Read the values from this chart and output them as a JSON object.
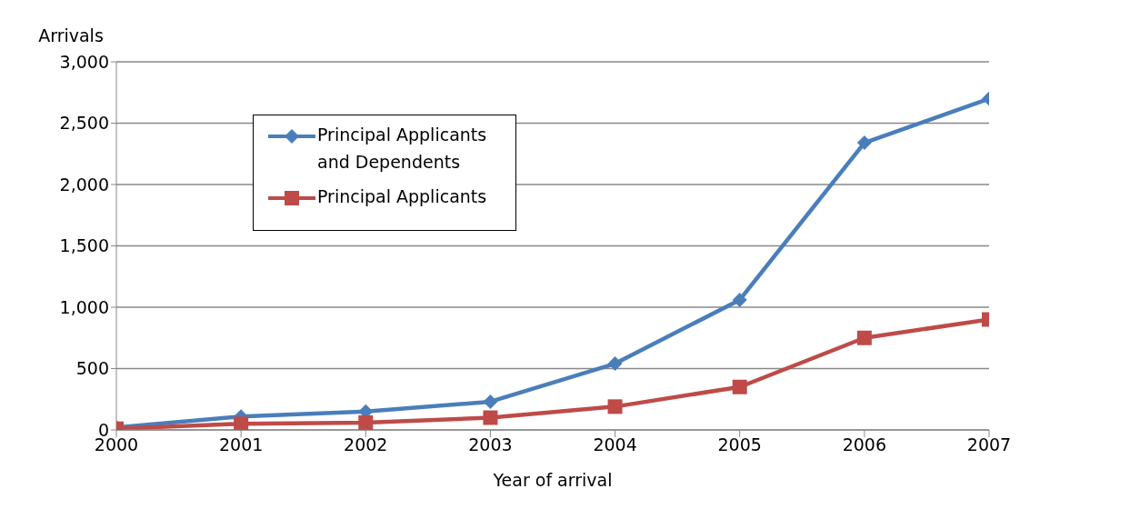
{
  "chart_data": {
    "type": "line",
    "xlabel": "Year of arrival",
    "ylabel": "Arrivals",
    "x": [
      2000,
      2001,
      2002,
      2003,
      2004,
      2005,
      2006,
      2007
    ],
    "xlim": [
      2000,
      2007
    ],
    "xticks": [
      2000,
      2001,
      2002,
      2003,
      2004,
      2005,
      2006,
      2007
    ],
    "ylim": [
      0,
      3000
    ],
    "yticks": [
      0,
      {
        "value": 500,
        "label": "500"
      },
      {
        "value": 1000,
        "label": "1,000"
      },
      {
        "value": 1500,
        "label": "1,500"
      },
      {
        "value": 2000,
        "label": "2,000"
      },
      {
        "value": 2500,
        "label": "2,500"
      },
      {
        "value": 3000,
        "label": "3,000"
      }
    ],
    "grid": "y",
    "legend": "top left",
    "line_style": "solid",
    "series": [
      {
        "name": "Principal Applicants and Dependents",
        "color": "#4a7ebb",
        "marker": "diamond",
        "values": [
          20,
          110,
          150,
          230,
          540,
          1060,
          2340,
          2700
        ]
      },
      {
        "name": "Principal Applicants",
        "color": "#be4b48",
        "marker": "square",
        "values": [
          10,
          50,
          60,
          100,
          190,
          350,
          750,
          900
        ]
      }
    ]
  }
}
